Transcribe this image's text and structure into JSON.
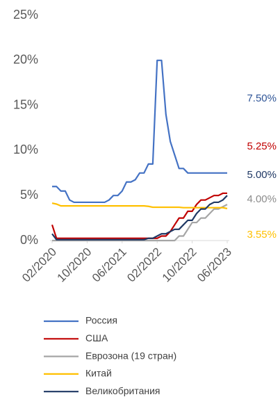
{
  "chart_data": {
    "type": "line",
    "categories": [
      "02/2020",
      null,
      null,
      null,
      null,
      null,
      null,
      null,
      "10/2020",
      null,
      null,
      null,
      null,
      null,
      null,
      null,
      "06/2021",
      null,
      null,
      null,
      null,
      null,
      null,
      null,
      "02/2022",
      null,
      null,
      null,
      null,
      null,
      null,
      null,
      "10/2022",
      null,
      null,
      null,
      null,
      null,
      null,
      null,
      "06/2023"
    ],
    "ylim": [
      0,
      25
    ],
    "yticks": [
      {
        "value": 0,
        "label": "0%"
      },
      {
        "value": 5,
        "label": "5%"
      },
      {
        "value": 10,
        "label": "10%"
      },
      {
        "value": 15,
        "label": "15%"
      },
      {
        "value": 20,
        "label": "20%"
      },
      {
        "value": 25,
        "label": "25%"
      }
    ],
    "grid": false,
    "legend": "bottom",
    "series": [
      {
        "name": "Россия",
        "color": "#4472c4",
        "label_color": "#2f5597",
        "end_label": "7.50%",
        "values": [
          6.0,
          6.0,
          5.5,
          5.5,
          4.5,
          4.25,
          4.25,
          4.25,
          4.25,
          4.25,
          4.25,
          4.25,
          4.25,
          4.5,
          5.0,
          5.0,
          5.5,
          6.5,
          6.5,
          6.75,
          7.5,
          7.5,
          8.5,
          8.5,
          20,
          20,
          14,
          11,
          9.5,
          8,
          8,
          7.5,
          7.5,
          7.5,
          7.5,
          7.5,
          7.5,
          7.5,
          7.5,
          7.5,
          7.5
        ]
      },
      {
        "name": "США",
        "color": "#c00000",
        "label_color": "#c00000",
        "end_label": "5.25%",
        "values": [
          1.75,
          0.25,
          0.25,
          0.25,
          0.25,
          0.25,
          0.25,
          0.25,
          0.25,
          0.25,
          0.25,
          0.25,
          0.25,
          0.25,
          0.25,
          0.25,
          0.25,
          0.25,
          0.25,
          0.25,
          0.25,
          0.25,
          0.25,
          0.25,
          0.25,
          0.5,
          0.5,
          1.0,
          1.75,
          2.5,
          2.5,
          3.25,
          3.25,
          4.0,
          4.5,
          4.5,
          4.75,
          5.0,
          5.0,
          5.25,
          5.25
        ]
      },
      {
        "name": "Еврозона (19 стран)",
        "color": "#a5a5a5",
        "label_color": "#8c8c8c",
        "end_label": "4.00%",
        "values": [
          0,
          0,
          0,
          0,
          0,
          0,
          0,
          0,
          0,
          0,
          0,
          0,
          0,
          0,
          0,
          0,
          0,
          0,
          0,
          0,
          0,
          0,
          0,
          0,
          0,
          0,
          0,
          0,
          0,
          0.5,
          0.5,
          1.25,
          2.0,
          2.0,
          2.5,
          2.5,
          3.0,
          3.5,
          3.5,
          3.75,
          4.0
        ]
      },
      {
        "name": "Китай",
        "color": "#ffc000",
        "label_color": "#ffc000",
        "end_label": "3.55%",
        "values": [
          4.15,
          4.05,
          3.85,
          3.85,
          3.85,
          3.85,
          3.85,
          3.85,
          3.85,
          3.85,
          3.85,
          3.85,
          3.85,
          3.85,
          3.85,
          3.85,
          3.85,
          3.85,
          3.85,
          3.85,
          3.85,
          3.85,
          3.8,
          3.7,
          3.7,
          3.7,
          3.7,
          3.7,
          3.7,
          3.7,
          3.65,
          3.65,
          3.65,
          3.65,
          3.65,
          3.65,
          3.65,
          3.65,
          3.65,
          3.65,
          3.55
        ]
      },
      {
        "name": "Великобритания",
        "color": "#1f3864",
        "label_color": "#1f3864",
        "end_label": "5.00%",
        "values": [
          0.75,
          0.1,
          0.1,
          0.1,
          0.1,
          0.1,
          0.1,
          0.1,
          0.1,
          0.1,
          0.1,
          0.1,
          0.1,
          0.1,
          0.1,
          0.1,
          0.1,
          0.1,
          0.1,
          0.1,
          0.1,
          0.1,
          0.25,
          0.25,
          0.5,
          0.75,
          0.75,
          1.0,
          1.25,
          1.25,
          1.75,
          2.25,
          2.25,
          3.0,
          3.5,
          3.5,
          4.0,
          4.25,
          4.25,
          4.5,
          5.0
        ]
      }
    ]
  }
}
